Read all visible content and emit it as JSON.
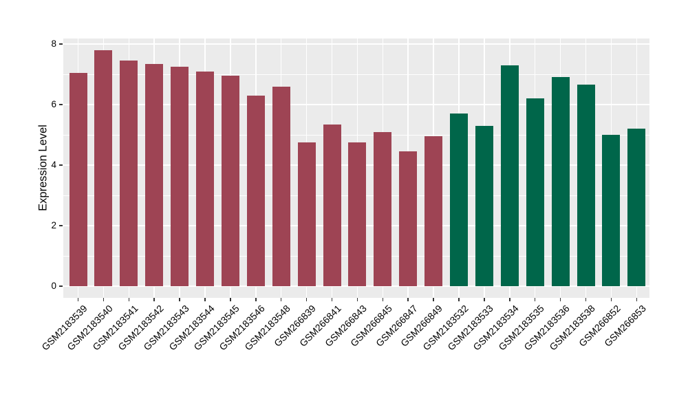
{
  "chart_data": {
    "type": "bar",
    "title": "",
    "xlabel": "",
    "ylabel": "Expression Level",
    "categories": [
      "GSM2183539",
      "GSM2183540",
      "GSM2183541",
      "GSM2183542",
      "GSM2183543",
      "GSM2183544",
      "GSM2183545",
      "GSM2183546",
      "GSM2183548",
      "GSM266839",
      "GSM266841",
      "GSM266843",
      "GSM266845",
      "GSM266847",
      "GSM266849",
      "GSM2183532",
      "GSM2183533",
      "GSM2183534",
      "GSM2183535",
      "GSM2183536",
      "GSM2183538",
      "GSM266852",
      "GSM266853"
    ],
    "values": [
      7.05,
      7.8,
      7.45,
      7.35,
      7.25,
      7.1,
      6.95,
      6.3,
      6.6,
      4.75,
      5.35,
      4.75,
      5.1,
      4.45,
      4.95,
      5.7,
      5.3,
      7.3,
      6.2,
      6.9,
      6.65,
      5.0,
      5.2
    ],
    "bar_group": [
      0,
      0,
      0,
      0,
      0,
      0,
      0,
      0,
      0,
      0,
      0,
      0,
      0,
      0,
      0,
      1,
      1,
      1,
      1,
      1,
      1,
      1,
      1
    ],
    "group_colors": [
      "#9E4454",
      "#00664A"
    ],
    "ylim": [
      0,
      8.2
    ],
    "yticks_major": [
      0,
      2,
      4,
      6,
      8
    ],
    "yticks_minor": [
      1,
      3,
      5,
      7
    ],
    "ytick_labels": [
      "0",
      "2",
      "4",
      "6",
      "8"
    ],
    "legend": "none",
    "grid": "on",
    "panel_bg": "#EBEBEB",
    "grid_color": "#FFFFFF"
  }
}
